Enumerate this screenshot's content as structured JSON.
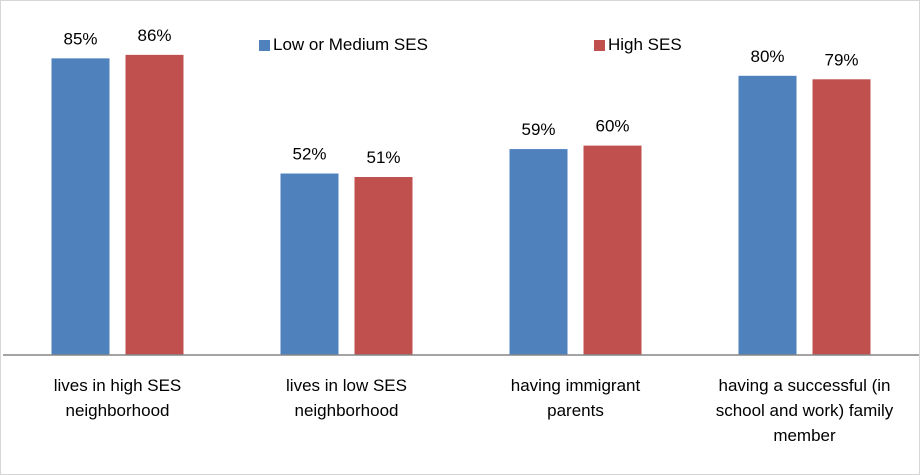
{
  "chart_data": {
    "type": "bar",
    "categories": [
      "lives in high SES neighborhood",
      "lives in low SES neighborhood",
      "having immigrant parents",
      "having a successful (in school and work) family member"
    ],
    "category_lines": [
      [
        "lives in high SES",
        "neighborhood"
      ],
      [
        "lives in low SES",
        "neighborhood"
      ],
      [
        "having immigrant",
        "parents"
      ],
      [
        "having a successful (in",
        "school and work) family",
        "member"
      ]
    ],
    "series": [
      {
        "name": "Low or Medium SES",
        "color": "#4f81bd",
        "values": [
          85,
          52,
          59,
          80
        ],
        "labels": [
          "85%",
          "52%",
          "59%",
          "80%"
        ]
      },
      {
        "name": "High SES",
        "color": "#c0504d",
        "values": [
          86,
          51,
          60,
          79
        ],
        "labels": [
          "86%",
          "51%",
          "60%",
          "79%"
        ]
      }
    ],
    "title": "",
    "xlabel": "",
    "ylabel": "",
    "ylim": [
      0,
      100
    ],
    "grid": false,
    "legend": "top-center",
    "axis_color": "#868686"
  }
}
